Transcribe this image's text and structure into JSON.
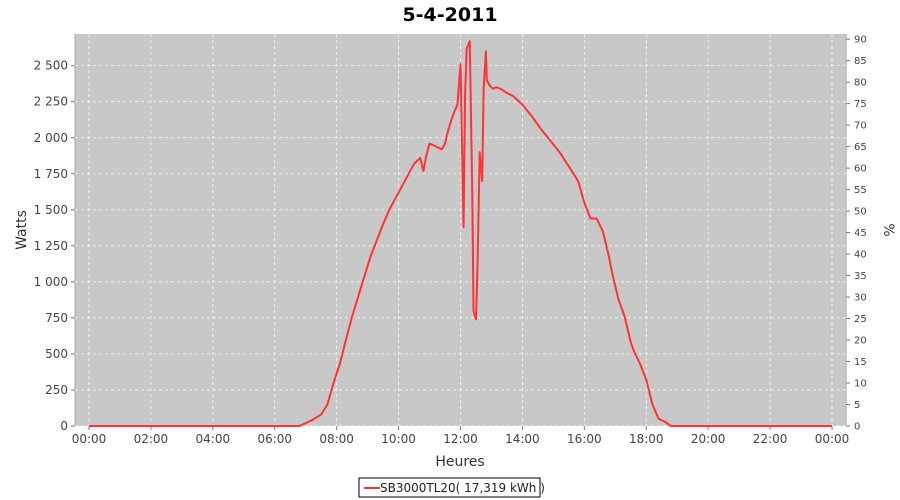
{
  "chart_data": {
    "type": "line",
    "title": "5-4-2011",
    "xlabel": "Heures",
    "ylabel": "Watts",
    "y2label": "%",
    "xlim": [
      0,
      24
    ],
    "ylim": [
      0,
      2720
    ],
    "y2lim": [
      0,
      91.2
    ],
    "grid": true,
    "x_ticks": [
      "00:00",
      "02:00",
      "04:00",
      "06:00",
      "08:00",
      "10:00",
      "12:00",
      "14:00",
      "16:00",
      "18:00",
      "20:00",
      "22:00",
      "00:00"
    ],
    "y_ticks": [
      "0",
      "250",
      "500",
      "750",
      "1 000",
      "1 250",
      "1 500",
      "1 750",
      "2 000",
      "2 250",
      "2 500"
    ],
    "y_tick_values": [
      0,
      250,
      500,
      750,
      1000,
      1250,
      1500,
      1750,
      2000,
      2250,
      2500
    ],
    "y2_ticks": [
      "0",
      "5",
      "10",
      "15",
      "20",
      "25",
      "30",
      "35",
      "40",
      "45",
      "50",
      "55",
      "60",
      "65",
      "70",
      "75",
      "80",
      "85",
      "90"
    ],
    "y2_tick_values": [
      0,
      5,
      10,
      15,
      20,
      25,
      30,
      35,
      40,
      45,
      50,
      55,
      60,
      65,
      70,
      75,
      80,
      85,
      90
    ],
    "legend": {
      "position": "bottom",
      "entries": [
        "SB3000TL20( 17,319 kWh )"
      ]
    },
    "series": [
      {
        "name": "SB3000TL20( 17,319 kWh )",
        "color": "#ff3333",
        "x": [
          0,
          6.8,
          6.95,
          7.2,
          7.5,
          7.7,
          7.9,
          8.1,
          8.3,
          8.5,
          8.7,
          8.9,
          9.1,
          9.3,
          9.5,
          9.7,
          9.9,
          10.1,
          10.3,
          10.5,
          10.7,
          10.8,
          10.9,
          11.0,
          11.2,
          11.4,
          11.5,
          11.6,
          11.7,
          11.8,
          11.9,
          12.0,
          12.1,
          12.15,
          12.2,
          12.3,
          12.38,
          12.42,
          12.5,
          12.55,
          12.62,
          12.7,
          12.75,
          12.82,
          12.85,
          12.95,
          13.05,
          13.15,
          13.3,
          13.5,
          13.7,
          14.0,
          14.3,
          14.6,
          14.9,
          15.2,
          15.5,
          15.8,
          16.0,
          16.2,
          16.4,
          16.6,
          16.8,
          16.9,
          17.1,
          17.3,
          17.5,
          17.6,
          17.8,
          18.0,
          18.2,
          18.4,
          18.6,
          18.8,
          18.9,
          19.0,
          19.2,
          19.4,
          24
        ],
        "values": [
          0,
          0,
          15,
          40,
          80,
          150,
          300,
          430,
          600,
          760,
          900,
          1040,
          1180,
          1290,
          1400,
          1500,
          1580,
          1660,
          1740,
          1820,
          1860,
          1770,
          1880,
          1960,
          1940,
          1920,
          1960,
          2050,
          2120,
          2180,
          2230,
          2510,
          1380,
          2300,
          2620,
          2670,
          1600,
          800,
          740,
          1100,
          1900,
          1700,
          2350,
          2600,
          2400,
          2360,
          2340,
          2350,
          2340,
          2310,
          2290,
          2230,
          2150,
          2060,
          1980,
          1900,
          1800,
          1700,
          1550,
          1440,
          1440,
          1350,
          1170,
          1060,
          880,
          760,
          580,
          520,
          430,
          320,
          150,
          50,
          30,
          0,
          0,
          0,
          0,
          0,
          0
        ]
      }
    ]
  }
}
